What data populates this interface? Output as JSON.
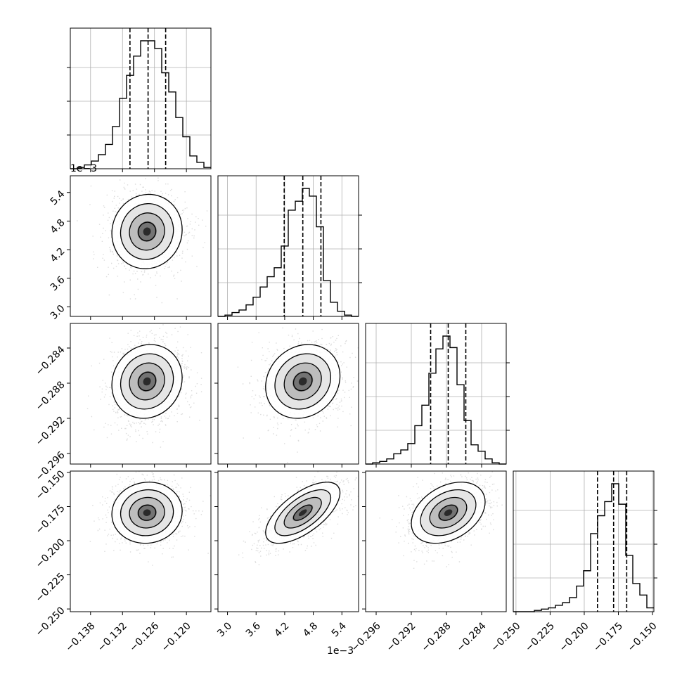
{
  "chart_data": {
    "type": "corner",
    "parameters": [
      {
        "range": [
          -0.1418,
          -0.1154
        ],
        "ticks": [
          -0.138,
          -0.132,
          -0.126,
          -0.12
        ],
        "tick_labels": [
          "−0.138",
          "−0.132",
          "−0.126",
          "−0.120"
        ],
        "offset_label": "",
        "quantiles": [
          -0.1306,
          -0.1272,
          -0.1239
        ],
        "mean": -0.1274,
        "sd": 0.0033
      },
      {
        "range": [
          2.8,
          5.75
        ],
        "ticks": [
          3.0,
          3.6,
          4.2,
          4.8,
          5.4
        ],
        "tick_labels": [
          "3.0",
          "3.6",
          "4.2",
          "4.8",
          "5.4"
        ],
        "offset_label": "1e−3",
        "quantiles": [
          4.19,
          4.58,
          4.96
        ],
        "mean": 4.58,
        "sd": 0.39
      },
      {
        "range": [
          -0.2972,
          -0.2812
        ],
        "ticks": [
          -0.296,
          -0.292,
          -0.288,
          -0.284
        ],
        "tick_labels": [
          "−0.296",
          "−0.292",
          "−0.288",
          "−0.284"
        ],
        "offset_label": "",
        "quantiles": [
          -0.2898,
          -0.2878,
          -0.2858
        ],
        "mean": -0.2878,
        "sd": 0.0021
      },
      {
        "range": [
          -0.252,
          -0.149
        ],
        "ticks": [
          -0.25,
          -0.225,
          -0.2,
          -0.175,
          -0.15
        ],
        "tick_labels": [
          "−0.250",
          "−0.225",
          "−0.200",
          "−0.175",
          "−0.150"
        ],
        "offset_label": "",
        "quantiles": [
          -0.1903,
          -0.1785,
          -0.1689
        ],
        "mean": -0.1795,
        "sd": 0.0112
      }
    ],
    "correlations": {
      "1-0": 0.05,
      "2-0": 0.1,
      "2-1": 0.15,
      "3-0": 0.05,
      "3-1": 0.65,
      "3-2": 0.35
    },
    "histograms": [
      [
        0,
        0.01,
        0.03,
        0.06,
        0.11,
        0.19,
        0.33,
        0.55,
        0.73,
        0.88,
        1.0,
        1.0,
        0.94,
        0.75,
        0.6,
        0.4,
        0.25,
        0.1,
        0.05,
        0.01
      ],
      [
        0,
        0.01,
        0.03,
        0.05,
        0.09,
        0.15,
        0.23,
        0.31,
        0.38,
        0.55,
        0.83,
        0.9,
        1.0,
        0.94,
        0.7,
        0.28,
        0.11,
        0.04,
        0.01,
        0
      ],
      [
        0,
        0.01,
        0.02,
        0.04,
        0.08,
        0.11,
        0.16,
        0.3,
        0.46,
        0.71,
        0.9,
        1.0,
        0.91,
        0.62,
        0.34,
        0.15,
        0.1,
        0.04,
        0.01,
        0
      ],
      [
        0,
        0,
        0,
        0.01,
        0.02,
        0.03,
        0.05,
        0.07,
        0.11,
        0.2,
        0.32,
        0.61,
        0.75,
        0.86,
        1.0,
        0.84,
        0.44,
        0.22,
        0.13,
        0.03
      ]
    ],
    "grid": true,
    "colors": {
      "line": "#000000",
      "grid": "#b0b0b0",
      "points": "#9a9a9a"
    }
  }
}
